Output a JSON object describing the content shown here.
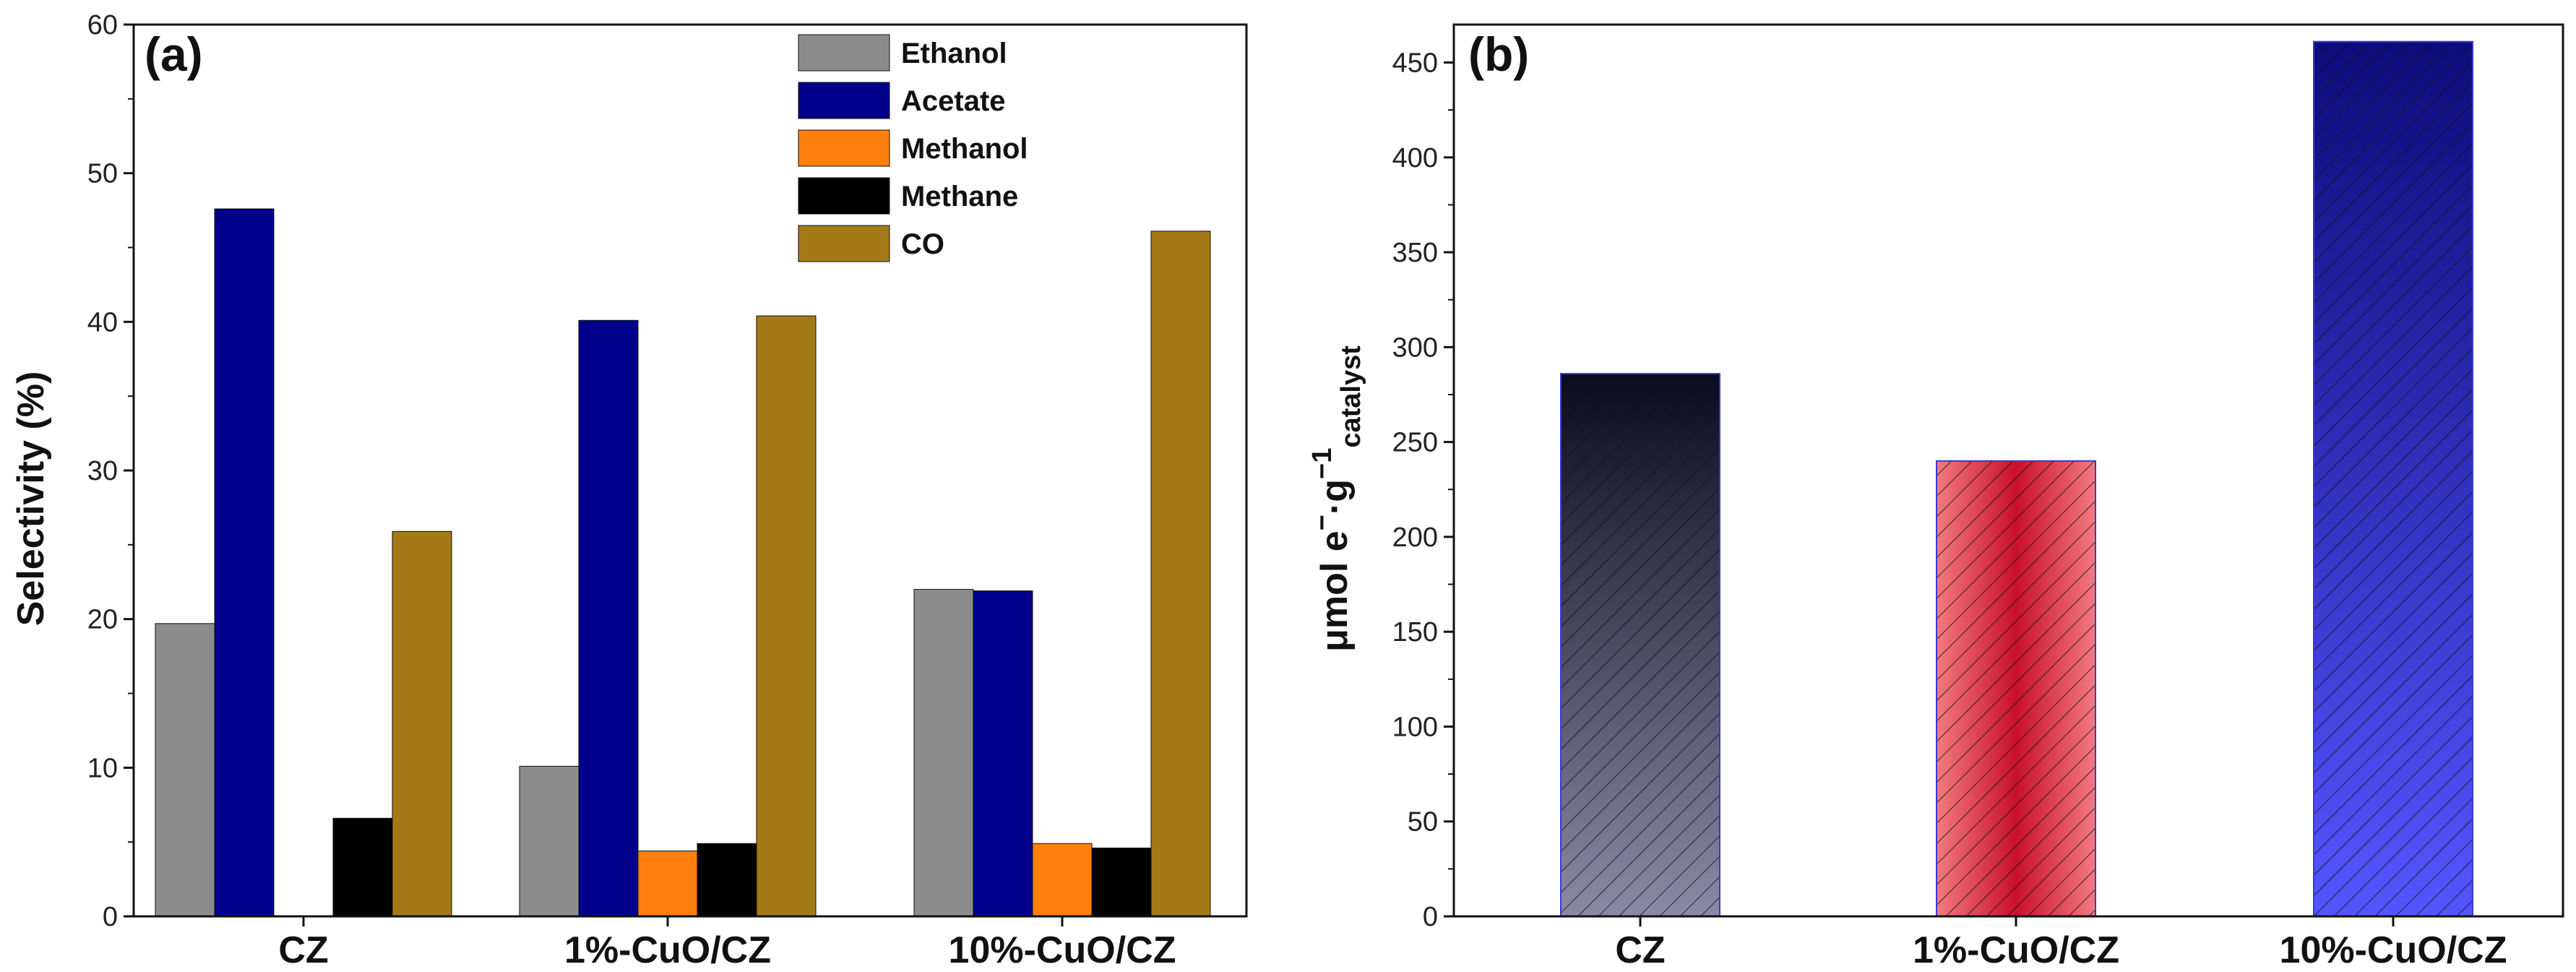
{
  "colors": {
    "Ethanol": "#8c8c8c",
    "Acetate": "#00008b",
    "Methanol": "#ff7f0e",
    "Methane": "#000000",
    "CO": "#a47a18",
    "axis": "#111111"
  },
  "chart_data": [
    {
      "type": "bar",
      "panel_label": "(a)",
      "title": "",
      "xlabel": "",
      "ylabel": "Selectivity (%)",
      "ylim": [
        0,
        60
      ],
      "yticks": [
        0,
        10,
        20,
        30,
        40,
        50,
        60
      ],
      "categories": [
        "CZ",
        "1%-CuO/CZ",
        "10%-CuO/CZ"
      ],
      "legend_position": "top-right",
      "series": [
        {
          "name": "Ethanol",
          "values": [
            19.7,
            10.1,
            22.0
          ]
        },
        {
          "name": "Acetate",
          "values": [
            47.6,
            40.1,
            21.9
          ]
        },
        {
          "name": "Methanol",
          "values": [
            0,
            4.4,
            4.9
          ]
        },
        {
          "name": "Methane",
          "values": [
            6.6,
            4.9,
            4.6
          ]
        },
        {
          "name": "CO",
          "values": [
            25.9,
            40.4,
            46.1
          ]
        }
      ]
    },
    {
      "type": "bar",
      "panel_label": "(b)",
      "title": "",
      "xlabel": "",
      "ylabel_main": "μmol e",
      "ylabel_sup1": "−",
      "ylabel_mid": "·g",
      "ylabel_sup2": "−1",
      "ylabel_sub": "catalyst",
      "ylim": [
        0,
        470
      ],
      "yticks": [
        0,
        50,
        100,
        150,
        200,
        250,
        300,
        350,
        400,
        450
      ],
      "categories": [
        "CZ",
        "1%-CuO/CZ",
        "10%-CuO/CZ"
      ],
      "values": [
        286,
        240,
        461
      ],
      "bar_styles": [
        "dark-gradient-hatched",
        "red-gradient-hatched",
        "blue-gradient-hatched"
      ]
    }
  ]
}
